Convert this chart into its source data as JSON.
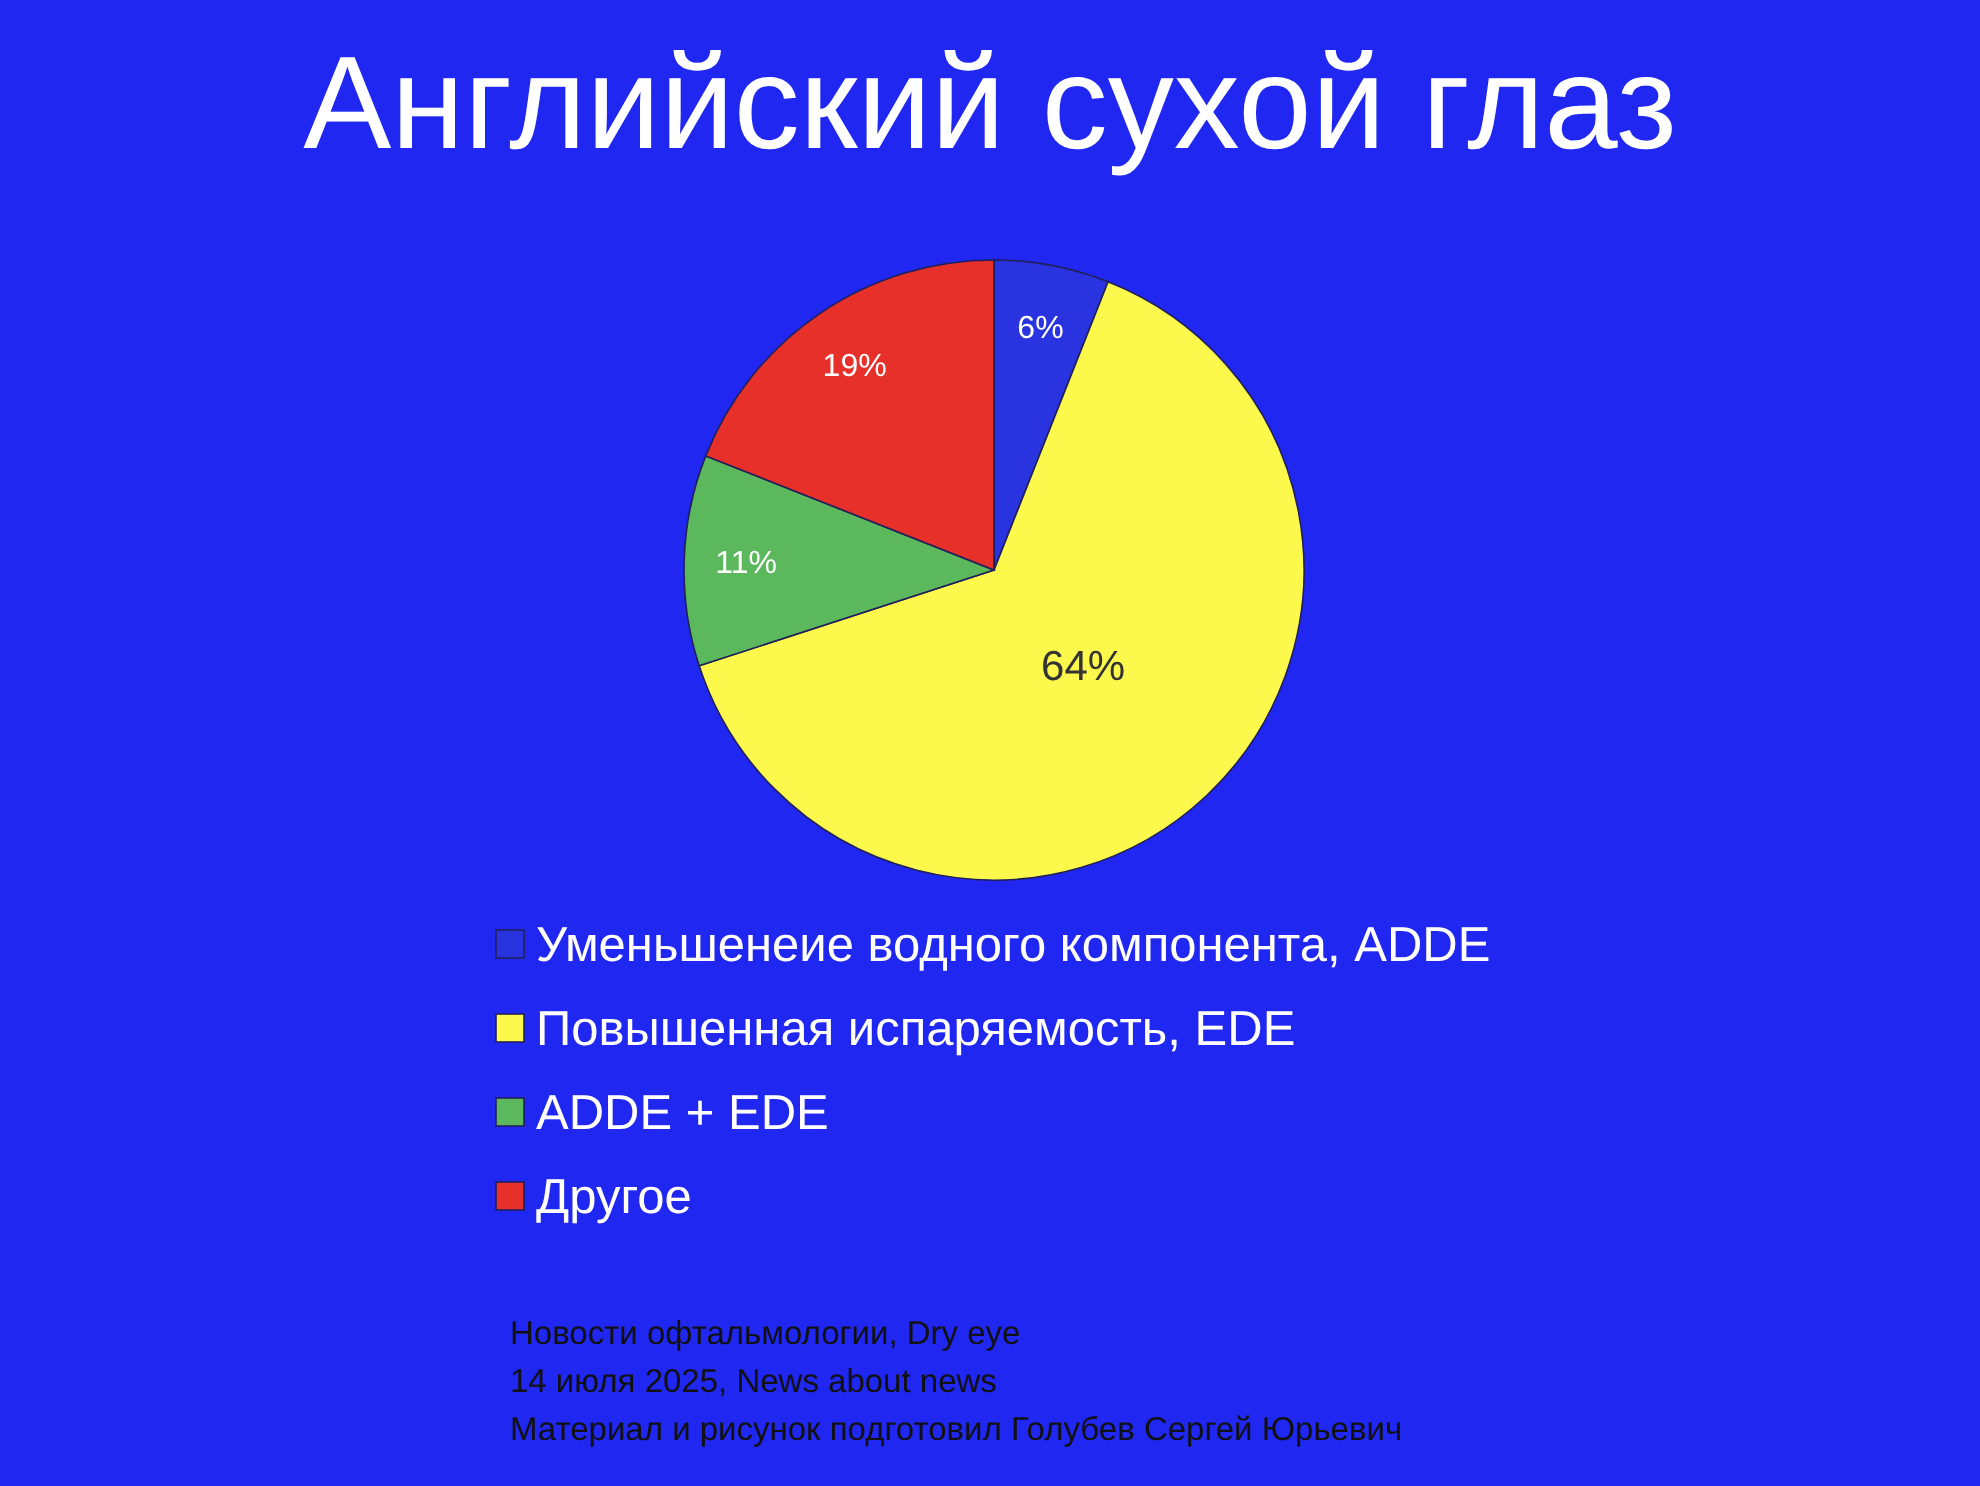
{
  "chart_data": {
    "type": "pie",
    "title": "Английский сухой глаз",
    "categories": [
      "Уменьшенеие водного компонента, ADDE",
      "Повышенная испаряемость, EDE",
      "ADDE + EDE",
      "Другое"
    ],
    "values": [
      6,
      64,
      11,
      19
    ],
    "colors": [
      "#2a33e0",
      "#fdf94c",
      "#5cb85c",
      "#e8302a"
    ],
    "value_labels": [
      "6%",
      "64%",
      "11%",
      "19%"
    ],
    "legend": "bottom",
    "annotations": [
      "Новости офтальмологии, Dry eye",
      "14 июля 2025, News about news",
      "Материал и рисунок подготовил Голубев Сергей Юрьевич"
    ]
  }
}
